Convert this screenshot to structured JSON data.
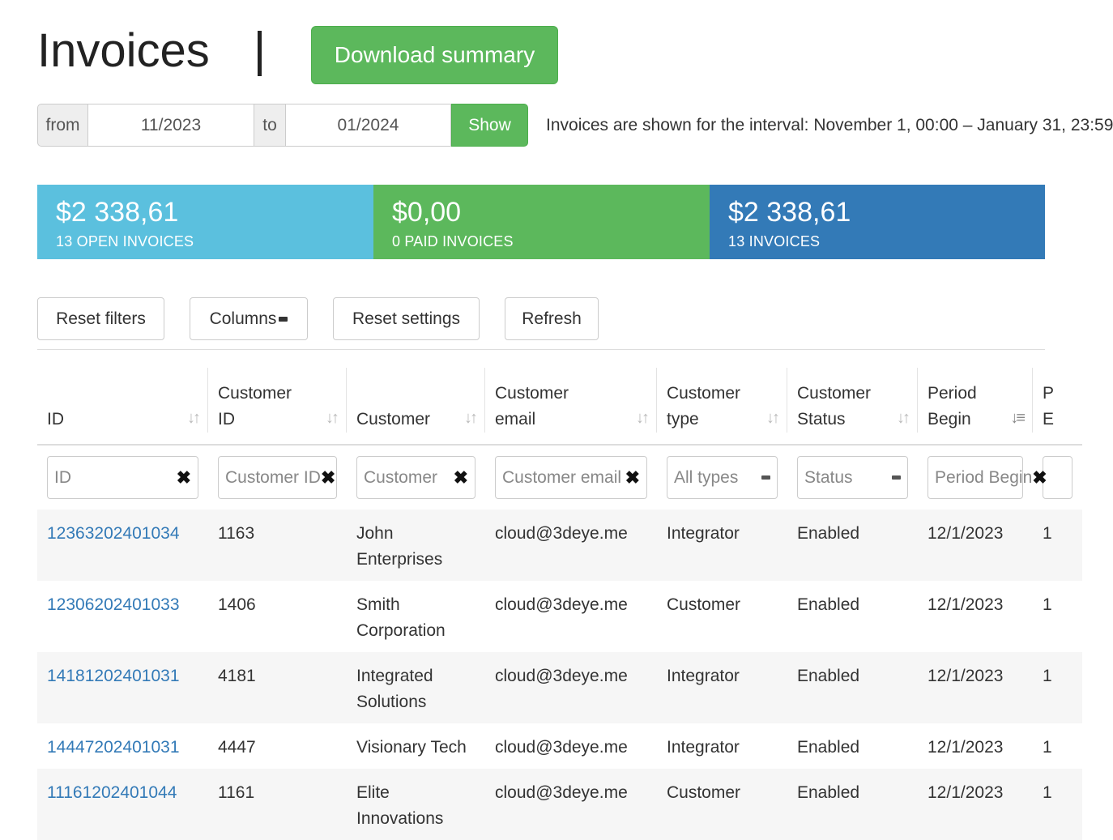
{
  "header": {
    "title": "Invoices",
    "download_label": "Download summary"
  },
  "interval": {
    "from_label": "from",
    "from_value": "11/2023",
    "to_label": "to",
    "to_value": "01/2024",
    "show_label": "Show",
    "description": "Invoices are shown for the interval: November 1, 00:00 – January 31, 23:59"
  },
  "summary": {
    "open": {
      "amount": "$2 338,61",
      "caption": "13 OPEN INVOICES"
    },
    "paid": {
      "amount": "$0,00",
      "caption": "0 PAID INVOICES"
    },
    "total": {
      "amount": "$2 338,61",
      "caption": "13 INVOICES"
    }
  },
  "toolbar": {
    "reset_filters": "Reset filters",
    "columns": "Columns",
    "reset_settings": "Reset settings",
    "refresh": "Refresh"
  },
  "table": {
    "columns": [
      {
        "line1": "",
        "line2": "ID"
      },
      {
        "line1": "Customer",
        "line2": "ID"
      },
      {
        "line1": "",
        "line2": "Customer"
      },
      {
        "line1": "Customer",
        "line2": "email"
      },
      {
        "line1": "Customer",
        "line2": "type"
      },
      {
        "line1": "Customer",
        "line2": "Status"
      },
      {
        "line1": "Period",
        "line2": "Begin"
      },
      {
        "line1": "P",
        "line2": "E"
      }
    ],
    "filters": {
      "id": "ID",
      "customer_id": "Customer ID",
      "customer": "Customer",
      "email": "Customer email",
      "type": "All types",
      "status": "Status",
      "period": "Period Begin"
    },
    "rows": [
      {
        "id": "12363202401034",
        "customer_id": "1163",
        "customer": "John Enterprises",
        "email": "cloud@3deye.me",
        "type": "Integrator",
        "status": "Enabled",
        "period_begin": "12/1/2023",
        "period_end": "1"
      },
      {
        "id": "12306202401033",
        "customer_id": "1406",
        "customer": "Smith Corporation",
        "email": "cloud@3deye.me",
        "type": "Customer",
        "status": "Enabled",
        "period_begin": "12/1/2023",
        "period_end": "1"
      },
      {
        "id": "14181202401031",
        "customer_id": "4181",
        "customer": "Integrated Solutions",
        "email": "cloud@3deye.me",
        "type": "Integrator",
        "status": "Enabled",
        "period_begin": "12/1/2023",
        "period_end": "1"
      },
      {
        "id": "14447202401031",
        "customer_id": "4447",
        "customer": "Visionary Tech",
        "email": "cloud@3deye.me",
        "type": "Integrator",
        "status": "Enabled",
        "period_begin": "12/1/2023",
        "period_end": "1"
      },
      {
        "id": "11161202401044",
        "customer_id": "1161",
        "customer": "Elite Innovations",
        "email": "cloud@3deye.me",
        "type": "Customer",
        "status": "Enabled",
        "period_begin": "12/1/2023",
        "period_end": "1"
      }
    ]
  }
}
